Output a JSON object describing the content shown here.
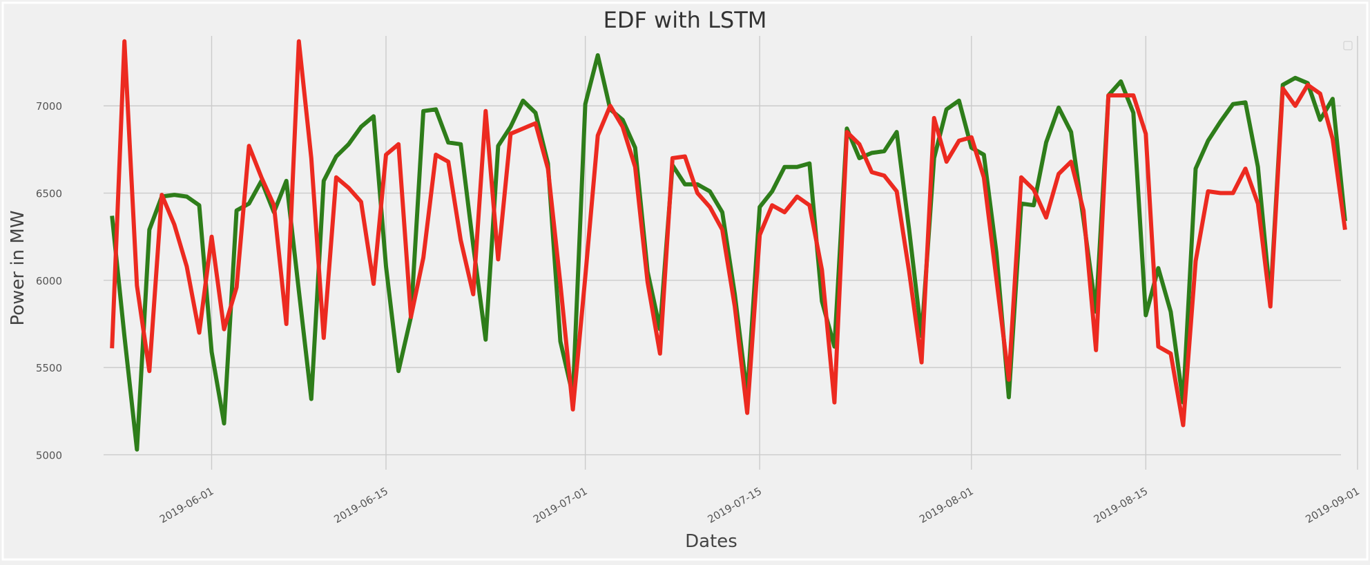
{
  "chart_data": {
    "type": "line",
    "title": "EDF with LSTM",
    "xlabel": "Dates",
    "ylabel": "Power in MW",
    "grid": true,
    "legend": "top-right (empty)",
    "xlim": [
      "2019-05-19",
      "2019-09-02"
    ],
    "ylim": [
      4875,
      7480
    ],
    "x_ticks": [
      "2019-06-01",
      "2019-06-15",
      "2019-07-01",
      "2019-07-15",
      "2019-08-01",
      "2019-08-15",
      "2019-09-01"
    ],
    "y_ticks": [
      5000,
      5500,
      6000,
      6500,
      7000
    ],
    "colors": {
      "background": "#f0f0f0",
      "grid": "#cbcbcb",
      "actual": "#2e7d1a",
      "predicted": "#ec2a20"
    },
    "x": [
      "2019-05-24",
      "2019-05-25",
      "2019-05-26",
      "2019-05-27",
      "2019-05-28",
      "2019-05-29",
      "2019-05-30",
      "2019-05-31",
      "2019-06-01",
      "2019-06-02",
      "2019-06-03",
      "2019-06-04",
      "2019-06-05",
      "2019-06-06",
      "2019-06-07",
      "2019-06-08",
      "2019-06-09",
      "2019-06-10",
      "2019-06-11",
      "2019-06-12",
      "2019-06-13",
      "2019-06-14",
      "2019-06-15",
      "2019-06-16",
      "2019-06-17",
      "2019-06-18",
      "2019-06-19",
      "2019-06-20",
      "2019-06-21",
      "2019-06-22",
      "2019-06-23",
      "2019-06-24",
      "2019-06-25",
      "2019-06-26",
      "2019-06-27",
      "2019-06-28",
      "2019-06-29",
      "2019-06-30",
      "2019-07-01",
      "2019-07-02",
      "2019-07-03",
      "2019-07-04",
      "2019-07-05",
      "2019-07-06",
      "2019-07-07",
      "2019-07-08",
      "2019-07-09",
      "2019-07-10",
      "2019-07-11",
      "2019-07-12",
      "2019-07-13",
      "2019-07-14",
      "2019-07-15",
      "2019-07-16",
      "2019-07-17",
      "2019-07-18",
      "2019-07-19",
      "2019-07-20",
      "2019-07-21",
      "2019-07-22",
      "2019-07-23",
      "2019-07-24",
      "2019-07-25",
      "2019-07-26",
      "2019-07-27",
      "2019-07-28",
      "2019-07-29",
      "2019-07-30",
      "2019-07-31",
      "2019-08-01",
      "2019-08-02",
      "2019-08-03",
      "2019-08-04",
      "2019-08-05",
      "2019-08-06",
      "2019-08-07",
      "2019-08-08",
      "2019-08-09",
      "2019-08-10",
      "2019-08-11",
      "2019-08-12",
      "2019-08-13",
      "2019-08-14",
      "2019-08-15",
      "2019-08-16",
      "2019-08-17",
      "2019-08-18",
      "2019-08-19",
      "2019-08-20",
      "2019-08-21",
      "2019-08-22",
      "2019-08-23",
      "2019-08-24",
      "2019-08-25",
      "2019-08-26",
      "2019-08-27",
      "2019-08-28",
      "2019-08-29",
      "2019-08-30",
      "2019-08-31"
    ],
    "series": [
      {
        "values": [
          6370,
          5680,
          5030,
          6290,
          6480,
          6490,
          6480,
          6430,
          5590,
          5180,
          6400,
          6440,
          6570,
          6390,
          6570,
          5940,
          5320,
          6570,
          6710,
          6780,
          6880,
          6940,
          6080,
          5480,
          5790,
          6970,
          6980,
          6790,
          6780,
          6200,
          5660,
          6770,
          6880,
          7030,
          6960,
          6670,
          5650,
          5340,
          7010,
          7290,
          6980,
          6920,
          6760,
          6050,
          5720,
          6660,
          6550,
          6550,
          6510,
          6390,
          5920,
          5340,
          6420,
          6510,
          6650,
          6650,
          6670,
          5880,
          5620,
          6870,
          6700,
          6730,
          6740,
          6850,
          6290,
          5680,
          6700,
          6980,
          7030,
          6760,
          6720,
          6160,
          5330,
          6440,
          6430,
          6790,
          6990,
          6850,
          6350,
          5820,
          7060,
          7140,
          6960,
          5800,
          6070,
          5820,
          5300,
          6640,
          6800,
          6910,
          7010,
          7020,
          6650,
          5890,
          7120,
          7160,
          7130,
          6920,
          7040,
          6340
        ]
      },
      {
        "values": [
          5610,
          7370,
          5970,
          5480,
          6490,
          6320,
          6080,
          5700,
          6250,
          5720,
          5960,
          6770,
          6590,
          6430,
          5750,
          7370,
          6700,
          5670,
          6590,
          6530,
          6450,
          5980,
          6720,
          6780,
          5790,
          6130,
          6720,
          6680,
          6230,
          5920,
          6970,
          6120,
          6840,
          6870,
          6900,
          6640,
          5980,
          5260,
          6020,
          6830,
          7000,
          6880,
          6650,
          5990,
          5580,
          6700,
          6710,
          6500,
          6420,
          6290,
          5850,
          5240,
          6260,
          6430,
          6390,
          6480,
          6430,
          6060,
          5300,
          6850,
          6780,
          6620,
          6600,
          6510,
          6050,
          5530,
          6930,
          6680,
          6800,
          6820,
          6590,
          6010,
          5430,
          6590,
          6520,
          6360,
          6610,
          6680,
          6400,
          5600,
          7060,
          7060,
          7060,
          6840,
          5620,
          5580,
          5170,
          6110,
          6510,
          6500,
          6500,
          6640,
          6440,
          5850,
          7100,
          7000,
          7120,
          7070,
          6810,
          6290
        ]
      }
    ]
  }
}
